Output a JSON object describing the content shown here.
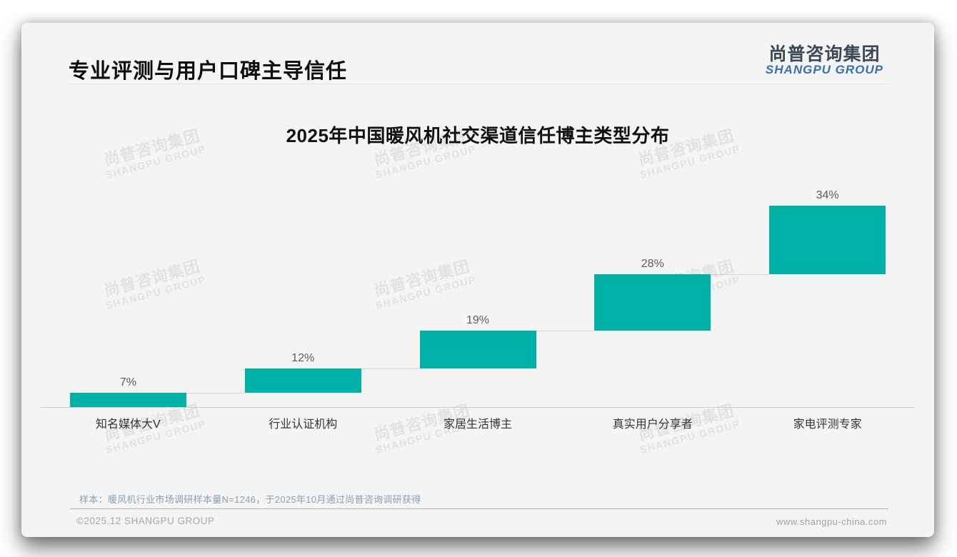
{
  "header": {
    "title": "专业评测与用户口碑主导信任"
  },
  "logo": {
    "cn": "尚普咨询集团",
    "en": "SHANGPU GROUP"
  },
  "watermark": {
    "cn": "尚普咨询集团",
    "en": "SHANGPU GROUP"
  },
  "chart_data": {
    "type": "bar",
    "subtype": "waterfall-step",
    "title": "2025年中国暖风机社交渠道信任博主类型分布",
    "categories": [
      "知名媒体大V",
      "行业认证机构",
      "家居生活博主",
      "真实用户分享者",
      "家电评测专家"
    ],
    "values": [
      7,
      12,
      19,
      28,
      34
    ],
    "labels": [
      "7%",
      "12%",
      "19%",
      "28%",
      "34%"
    ],
    "cumulative_start": [
      0,
      7,
      19,
      38,
      66
    ],
    "unit": "%",
    "ylim": [
      0,
      100
    ],
    "grid": false,
    "legend": false,
    "bar_color": "#00B1A7",
    "value_label_color": "#5C5C5C",
    "category_label_color": "#363636",
    "axis_color": "#CBCDCF",
    "connector_color": "#D2D4D6"
  },
  "footnote": "样本：暖风机行业市场调研样本量N=1246，于2025年10月通过尚普咨询调研获得",
  "footer": {
    "left": "©2025.12 SHANGPU GROUP",
    "right": "www.shangpu-china.com"
  },
  "colors": {
    "card_background": "#F4F4F5",
    "accent_teal": "#00B1A7",
    "logo_blue": "#3570B2",
    "logo_dark": "#3C4854",
    "footnote_gray_blue": "#8FA0AC"
  }
}
